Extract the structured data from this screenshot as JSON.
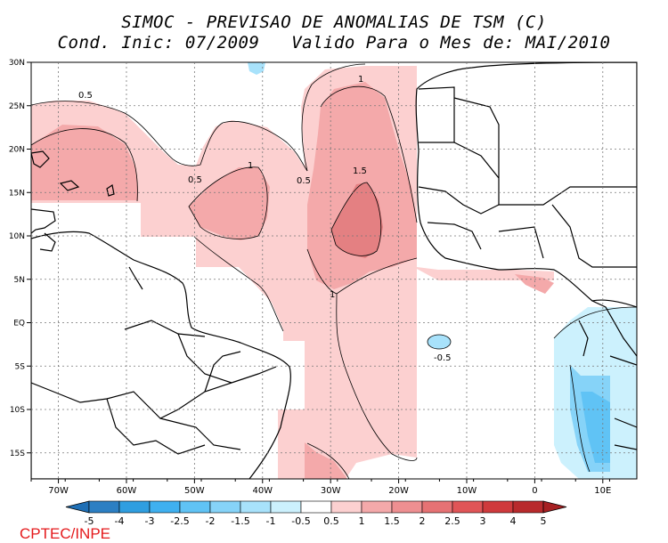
{
  "title_line1": "SIMOC - PREVISAO DE ANOMALIAS DE TSM (C)",
  "title_line2": "Cond. Inic: 07/2009   Valido Para o Mes de: MAI/2010",
  "credit": "CPTEC/INPE",
  "lat_labels": [
    "30N",
    "25N",
    "20N",
    "15N",
    "10N",
    "5N",
    "EQ",
    "5S",
    "10S",
    "15S"
  ],
  "lon_labels": [
    "70W",
    "60W",
    "50W",
    "40W",
    "30W",
    "20W",
    "10W",
    "0",
    "10E"
  ],
  "contour_labels": [
    "0.5",
    "0.5",
    "0.5",
    "1",
    "1",
    "1",
    "1.5",
    "-0.5"
  ],
  "colorbar": {
    "labels": [
      "-5",
      "-4",
      "-3",
      "-2.5",
      "-2",
      "-1.5",
      "-1",
      "-0.5",
      "0.5",
      "1",
      "1.5",
      "2",
      "2.5",
      "3",
      "4",
      "5"
    ],
    "colors": [
      "#2c7fc3",
      "#2f9ee0",
      "#3fb0f0",
      "#60c3f5",
      "#86d3f8",
      "#a8e2fb",
      "#ccf1fd",
      "#ffffff",
      "#fcd0d0",
      "#f4a9aa",
      "#ee8f91",
      "#e67274",
      "#e05557",
      "#cf3a3c",
      "#b82a2c"
    ],
    "left_arrow_color": "#1f6fb5",
    "right_arrow_color": "#a62022"
  }
}
